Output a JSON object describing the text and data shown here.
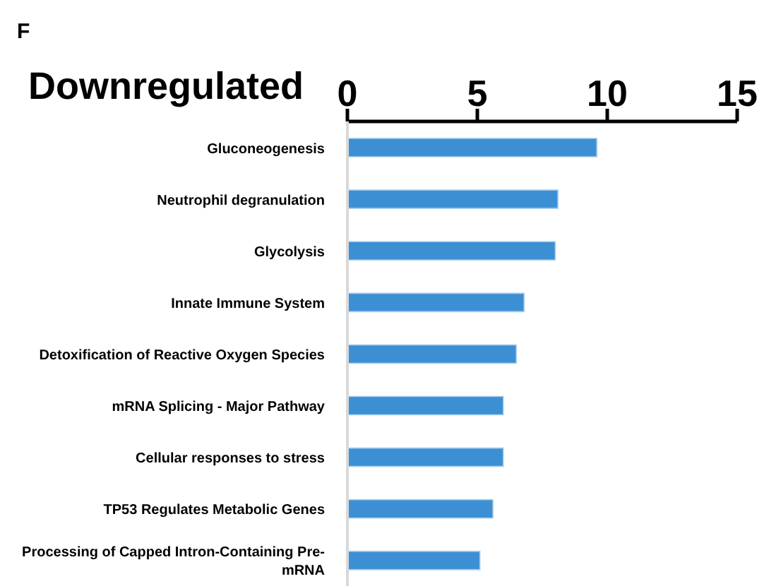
{
  "chart_data": {
    "type": "bar",
    "orientation": "horizontal",
    "title": "Downregulated",
    "annotations": [
      "F"
    ],
    "categories": [
      "Gluconeogenesis",
      "Neutrophil degranulation",
      "Glycolysis",
      "Innate Immune System",
      "Detoxification of Reactive Oxygen Species",
      "mRNA Splicing - Major Pathway",
      "Cellular responses to stress",
      "TP53 Regulates Metabolic Genes",
      "Processing of Capped Intron-Containing Pre-mRNA"
    ],
    "values": [
      9.6,
      8.1,
      8.0,
      6.8,
      6.5,
      6.0,
      6.0,
      5.6,
      5.1
    ],
    "color": "#3d8fd4",
    "xlim": [
      0,
      15
    ],
    "xticks": [
      0,
      5,
      10,
      15
    ],
    "grid": false,
    "legend": false
  }
}
